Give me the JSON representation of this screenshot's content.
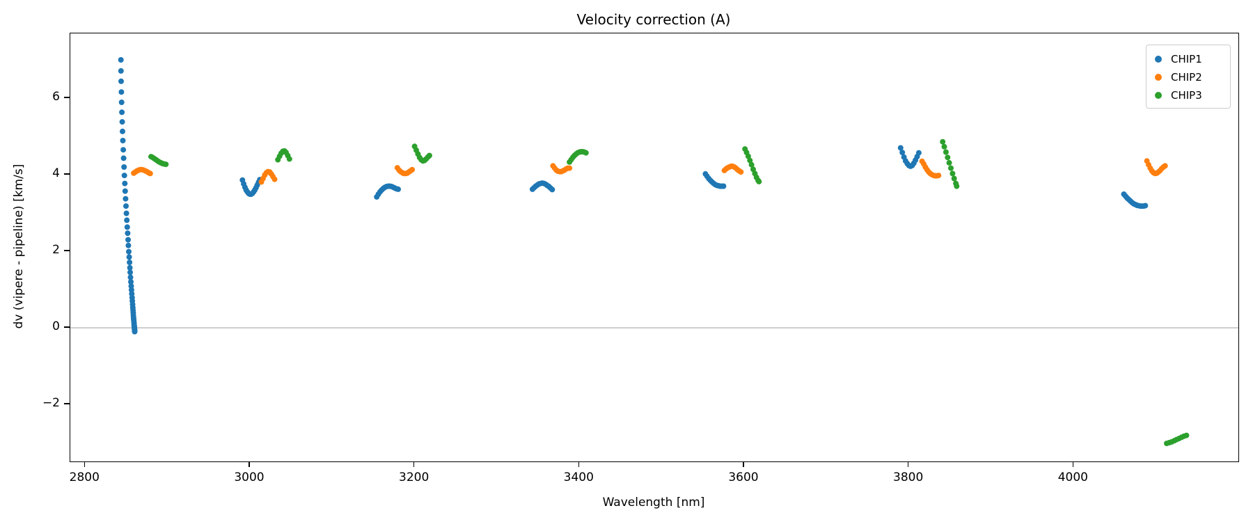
{
  "title": "Velocity correction (A)",
  "legend": {
    "items": [
      {
        "label": "CHIP1",
        "color": "#1f77b4"
      },
      {
        "label": "CHIP2",
        "color": "#ff7f0e"
      },
      {
        "label": "CHIP3",
        "color": "#2ca02c"
      }
    ]
  },
  "chart_data": {
    "type": "scatter",
    "title": "Velocity correction (A)",
    "xlabel": "Wavelength [nm]",
    "ylabel": "dv (vipere - pipeline) [km/s]",
    "xlim": [
      2782,
      4200
    ],
    "ylim": [
      -3.49,
      7.69
    ],
    "xticks": [
      2800,
      3000,
      3200,
      3400,
      3600,
      3800,
      4000
    ],
    "yticks": [
      -2,
      0,
      2,
      4,
      6
    ],
    "grid": "single horizontal gray line at y=0",
    "zero_line_y": 0,
    "zero_line_color": "#b0b0b0",
    "legend_position": "upper right",
    "marker_radius_px": 4,
    "series": [
      {
        "name": "CHIP1",
        "color": "#1f77b4",
        "points": [
          [
            2843.4,
            7.0
          ],
          [
            2843.5,
            6.71
          ],
          [
            2843.7,
            6.44
          ],
          [
            2844.0,
            6.16
          ],
          [
            2844.3,
            5.89
          ],
          [
            2844.6,
            5.63
          ],
          [
            2845.0,
            5.38
          ],
          [
            2845.4,
            5.13
          ],
          [
            2845.8,
            4.89
          ],
          [
            2846.3,
            4.65
          ],
          [
            2846.7,
            4.43
          ],
          [
            2847.2,
            4.2
          ],
          [
            2847.7,
            3.98
          ],
          [
            2848.2,
            3.77
          ],
          [
            2848.6,
            3.57
          ],
          [
            2849.1,
            3.37
          ],
          [
            2849.6,
            3.18
          ],
          [
            2850.1,
            2.99
          ],
          [
            2850.6,
            2.81
          ],
          [
            2851.1,
            2.63
          ],
          [
            2851.6,
            2.47
          ],
          [
            2852.1,
            2.3
          ],
          [
            2852.5,
            2.15
          ],
          [
            2853.0,
            1.99
          ],
          [
            2853.5,
            1.85
          ],
          [
            2853.9,
            1.71
          ],
          [
            2854.3,
            1.57
          ],
          [
            2854.7,
            1.45
          ],
          [
            2855.1,
            1.32
          ],
          [
            2855.5,
            1.2
          ],
          [
            2855.9,
            1.09
          ],
          [
            2856.3,
            0.99
          ],
          [
            2856.6,
            0.89
          ],
          [
            2857.0,
            0.79
          ],
          [
            2857.3,
            0.7
          ],
          [
            2857.6,
            0.61
          ],
          [
            2857.9,
            0.53
          ],
          [
            2858.1,
            0.46
          ],
          [
            2858.4,
            0.39
          ],
          [
            2858.6,
            0.32
          ],
          [
            2858.8,
            0.26
          ],
          [
            2859.0,
            0.21
          ],
          [
            2859.2,
            0.16
          ],
          [
            2859.4,
            0.11
          ],
          [
            2859.5,
            0.07
          ],
          [
            2859.7,
            0.04
          ],
          [
            2859.8,
            0.01
          ],
          [
            2859.9,
            -0.02
          ],
          [
            2860.0,
            -0.04
          ],
          [
            2860.1,
            -0.07
          ],
          [
            2860.2,
            -0.09
          ],
          [
            2860.2,
            -0.1
          ],
          [
            2991,
            3.86
          ],
          [
            2992.5,
            3.76
          ],
          [
            2994,
            3.67
          ],
          [
            2995.5,
            3.6
          ],
          [
            2997,
            3.55
          ],
          [
            2998.5,
            3.51
          ],
          [
            3000,
            3.49
          ],
          [
            3001.5,
            3.49
          ],
          [
            3003,
            3.51
          ],
          [
            3004.5,
            3.55
          ],
          [
            3006,
            3.6
          ],
          [
            3007.5,
            3.66
          ],
          [
            3009,
            3.73
          ],
          [
            3010.5,
            3.8
          ],
          [
            3012,
            3.87
          ],
          [
            3154,
            3.42
          ],
          [
            3156,
            3.49
          ],
          [
            3158,
            3.55
          ],
          [
            3160,
            3.6
          ],
          [
            3162,
            3.64
          ],
          [
            3164,
            3.67
          ],
          [
            3166,
            3.69
          ],
          [
            3168,
            3.7
          ],
          [
            3170,
            3.7
          ],
          [
            3172,
            3.69
          ],
          [
            3174,
            3.67
          ],
          [
            3176,
            3.65
          ],
          [
            3178,
            3.63
          ],
          [
            3180,
            3.62
          ],
          [
            3343,
            3.62
          ],
          [
            3345,
            3.66
          ],
          [
            3347,
            3.7
          ],
          [
            3349,
            3.73
          ],
          [
            3351,
            3.76
          ],
          [
            3353,
            3.77
          ],
          [
            3355,
            3.78
          ],
          [
            3357,
            3.77
          ],
          [
            3359,
            3.75
          ],
          [
            3361,
            3.72
          ],
          [
            3363,
            3.69
          ],
          [
            3365,
            3.65
          ],
          [
            3367,
            3.61
          ],
          [
            3553,
            4.02
          ],
          [
            3555,
            3.96
          ],
          [
            3557,
            3.9
          ],
          [
            3559,
            3.85
          ],
          [
            3561,
            3.81
          ],
          [
            3563,
            3.77
          ],
          [
            3565,
            3.74
          ],
          [
            3567,
            3.72
          ],
          [
            3569,
            3.71
          ],
          [
            3571,
            3.7
          ],
          [
            3573,
            3.7
          ],
          [
            3575,
            3.7
          ],
          [
            3790,
            4.7
          ],
          [
            3792,
            4.58
          ],
          [
            3794,
            4.46
          ],
          [
            3796,
            4.36
          ],
          [
            3798,
            4.29
          ],
          [
            3800,
            4.24
          ],
          [
            3802,
            4.22
          ],
          [
            3804,
            4.24
          ],
          [
            3806,
            4.3
          ],
          [
            3808,
            4.38
          ],
          [
            3810,
            4.47
          ],
          [
            3812,
            4.57
          ],
          [
            4061,
            3.49
          ],
          [
            4063,
            3.44
          ],
          [
            4065,
            3.39
          ],
          [
            4067,
            3.35
          ],
          [
            4069,
            3.31
          ],
          [
            4071,
            3.27
          ],
          [
            4073,
            3.24
          ],
          [
            4075,
            3.22
          ],
          [
            4077,
            3.2
          ],
          [
            4079,
            3.19
          ],
          [
            4081,
            3.18
          ],
          [
            4083,
            3.18
          ],
          [
            4085,
            3.18
          ],
          [
            4087,
            3.19
          ]
        ]
      },
      {
        "name": "CHIP2",
        "color": "#ff7f0e",
        "points": [
          [
            2859,
            4.04
          ],
          [
            2861,
            4.07
          ],
          [
            2863,
            4.1
          ],
          [
            2865,
            4.12
          ],
          [
            2867,
            4.13
          ],
          [
            2869,
            4.13
          ],
          [
            2871,
            4.12
          ],
          [
            2873,
            4.1
          ],
          [
            2875,
            4.08
          ],
          [
            2877,
            4.05
          ],
          [
            2879,
            4.03
          ],
          [
            3014,
            3.81
          ],
          [
            3016,
            3.9
          ],
          [
            3018,
            3.99
          ],
          [
            3020,
            4.05
          ],
          [
            3022,
            4.08
          ],
          [
            3024,
            4.07
          ],
          [
            3026,
            4.02
          ],
          [
            3028,
            3.95
          ],
          [
            3030,
            3.88
          ],
          [
            3179,
            4.18
          ],
          [
            3181,
            4.12
          ],
          [
            3183,
            4.08
          ],
          [
            3185,
            4.05
          ],
          [
            3187,
            4.03
          ],
          [
            3189,
            4.03
          ],
          [
            3191,
            4.04
          ],
          [
            3193,
            4.07
          ],
          [
            3195,
            4.1
          ],
          [
            3197,
            4.13
          ],
          [
            3368,
            4.23
          ],
          [
            3370,
            4.17
          ],
          [
            3372,
            4.12
          ],
          [
            3374,
            4.09
          ],
          [
            3376,
            4.08
          ],
          [
            3378,
            4.08
          ],
          [
            3380,
            4.1
          ],
          [
            3382,
            4.12
          ],
          [
            3384,
            4.15
          ],
          [
            3386,
            4.17
          ],
          [
            3388,
            4.17
          ],
          [
            3576,
            4.11
          ],
          [
            3578,
            4.15
          ],
          [
            3580,
            4.18
          ],
          [
            3582,
            4.2
          ],
          [
            3584,
            4.22
          ],
          [
            3586,
            4.22
          ],
          [
            3588,
            4.2
          ],
          [
            3590,
            4.17
          ],
          [
            3592,
            4.13
          ],
          [
            3594,
            4.1
          ],
          [
            3596,
            4.07
          ],
          [
            3816,
            4.35
          ],
          [
            3818,
            4.28
          ],
          [
            3820,
            4.2
          ],
          [
            3822,
            4.13
          ],
          [
            3824,
            4.07
          ],
          [
            3826,
            4.03
          ],
          [
            3828,
            4.0
          ],
          [
            3830,
            3.98
          ],
          [
            3832,
            3.97
          ],
          [
            3834,
            3.97
          ],
          [
            3836,
            3.98
          ],
          [
            4089,
            4.36
          ],
          [
            4091,
            4.26
          ],
          [
            4093,
            4.17
          ],
          [
            4095,
            4.1
          ],
          [
            4097,
            4.05
          ],
          [
            4099,
            4.03
          ],
          [
            4101,
            4.04
          ],
          [
            4103,
            4.07
          ],
          [
            4105,
            4.11
          ],
          [
            4107,
            4.16
          ],
          [
            4109,
            4.2
          ],
          [
            4111,
            4.23
          ]
        ]
      },
      {
        "name": "CHIP3",
        "color": "#2ca02c",
        "points": [
          [
            2880,
            4.47
          ],
          [
            2882,
            4.45
          ],
          [
            2884,
            4.42
          ],
          [
            2886,
            4.39
          ],
          [
            2888,
            4.36
          ],
          [
            2890,
            4.33
          ],
          [
            2892,
            4.31
          ],
          [
            2894,
            4.29
          ],
          [
            2896,
            4.28
          ],
          [
            2898,
            4.27
          ],
          [
            3034,
            4.39
          ],
          [
            3036,
            4.48
          ],
          [
            3038,
            4.56
          ],
          [
            3040,
            4.61
          ],
          [
            3042,
            4.62
          ],
          [
            3044,
            4.58
          ],
          [
            3046,
            4.5
          ],
          [
            3048,
            4.41
          ],
          [
            3200,
            4.74
          ],
          [
            3202,
            4.64
          ],
          [
            3204,
            4.54
          ],
          [
            3206,
            4.45
          ],
          [
            3208,
            4.39
          ],
          [
            3210,
            4.36
          ],
          [
            3212,
            4.37
          ],
          [
            3214,
            4.41
          ],
          [
            3216,
            4.46
          ],
          [
            3218,
            4.5
          ],
          [
            3388,
            4.33
          ],
          [
            3390,
            4.39
          ],
          [
            3392,
            4.45
          ],
          [
            3394,
            4.5
          ],
          [
            3396,
            4.54
          ],
          [
            3398,
            4.57
          ],
          [
            3400,
            4.59
          ],
          [
            3402,
            4.6
          ],
          [
            3404,
            4.6
          ],
          [
            3406,
            4.59
          ],
          [
            3408,
            4.57
          ],
          [
            3601,
            4.67
          ],
          [
            3603,
            4.58
          ],
          [
            3605,
            4.48
          ],
          [
            3607,
            4.37
          ],
          [
            3609,
            4.26
          ],
          [
            3611,
            4.14
          ],
          [
            3613,
            4.03
          ],
          [
            3615,
            3.93
          ],
          [
            3617,
            3.85
          ],
          [
            3618,
            3.82
          ],
          [
            3841,
            4.86
          ],
          [
            3843,
            4.73
          ],
          [
            3845,
            4.59
          ],
          [
            3847,
            4.45
          ],
          [
            3849,
            4.31
          ],
          [
            3851,
            4.17
          ],
          [
            3853,
            4.03
          ],
          [
            3855,
            3.9
          ],
          [
            3857,
            3.77
          ],
          [
            3858,
            3.7
          ],
          [
            4113,
            -3.02
          ],
          [
            4116,
            -3.0
          ],
          [
            4119,
            -2.98
          ],
          [
            4122,
            -2.95
          ],
          [
            4125,
            -2.92
          ],
          [
            4128,
            -2.89
          ],
          [
            4131,
            -2.86
          ],
          [
            4134,
            -2.83
          ],
          [
            4137,
            -2.81
          ]
        ]
      }
    ]
  }
}
